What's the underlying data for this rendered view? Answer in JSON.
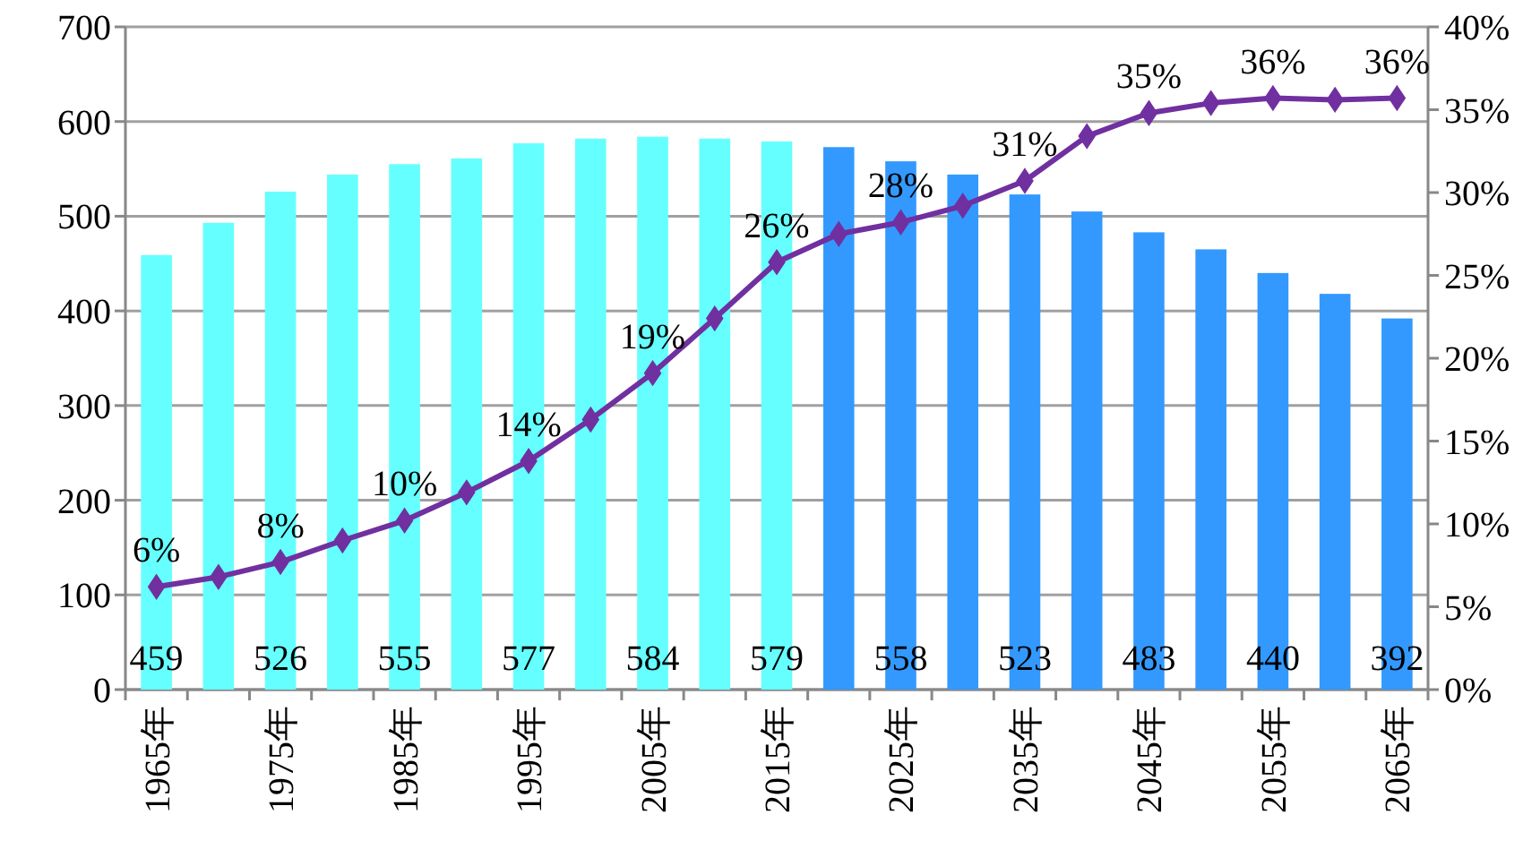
{
  "chart_data": {
    "type": "bar",
    "grid": "y",
    "marker": "diamond",
    "categories": [
      "1965年",
      null,
      "1975年",
      null,
      "1985年",
      null,
      "1995年",
      null,
      "2005年",
      null,
      "2015年",
      null,
      "2025年",
      null,
      "2035年",
      null,
      "2045年",
      null,
      "2055年",
      null,
      "2065年"
    ],
    "series": [
      {
        "colors": [
          "#66ffff",
          "#66ffff",
          "#66ffff",
          "#66ffff",
          "#66ffff",
          "#66ffff",
          "#66ffff",
          "#66ffff",
          "#66ffff",
          "#66ffff",
          "#66ffff",
          "#3399ff",
          "#3399ff",
          "#3399ff",
          "#3399ff",
          "#3399ff",
          "#3399ff",
          "#3399ff",
          "#3399ff",
          "#3399ff",
          "#3399ff"
        ],
        "values": [
          459,
          493,
          526,
          544,
          555,
          561,
          577,
          582,
          584,
          582,
          579,
          573,
          558,
          544,
          523,
          505,
          483,
          465,
          440,
          418,
          392
        ],
        "value_labels": [
          "459",
          null,
          "526",
          null,
          "555",
          null,
          "577",
          null,
          "584",
          null,
          "579",
          null,
          "558",
          null,
          "523",
          null,
          "483",
          null,
          "440",
          null,
          "392"
        ]
      },
      {
        "type": "line",
        "axis": "y2",
        "color": "#7030a0",
        "values": [
          6.2,
          6.8,
          7.7,
          9.0,
          10.2,
          11.9,
          13.8,
          16.3,
          19.1,
          22.4,
          25.8,
          27.5,
          28.2,
          29.2,
          30.7,
          33.4,
          34.8,
          35.4,
          35.7,
          35.6,
          35.7
        ],
        "value_labels": [
          "6%",
          null,
          "8%",
          null,
          "10%",
          null,
          "14%",
          null,
          "19%",
          null,
          "26%",
          null,
          "28%",
          null,
          "31%",
          null,
          "35%",
          null,
          "36%",
          null,
          "36%"
        ]
      }
    ],
    "ylim": [
      0,
      700
    ],
    "yticks": [
      0,
      100,
      200,
      300,
      400,
      500,
      600,
      700
    ],
    "y2lim": [
      0,
      40
    ],
    "y2ticks": [
      {
        "value": 0,
        "label": "0%"
      },
      {
        "value": 5,
        "label": "5%"
      },
      {
        "value": 10,
        "label": "10%"
      },
      {
        "value": 15,
        "label": "15%"
      },
      {
        "value": 20,
        "label": "20%"
      },
      {
        "value": 25,
        "label": "25%"
      },
      {
        "value": 30,
        "label": "30%"
      },
      {
        "value": 35,
        "label": "35%"
      },
      {
        "value": 40,
        "label": "40%"
      }
    ]
  }
}
